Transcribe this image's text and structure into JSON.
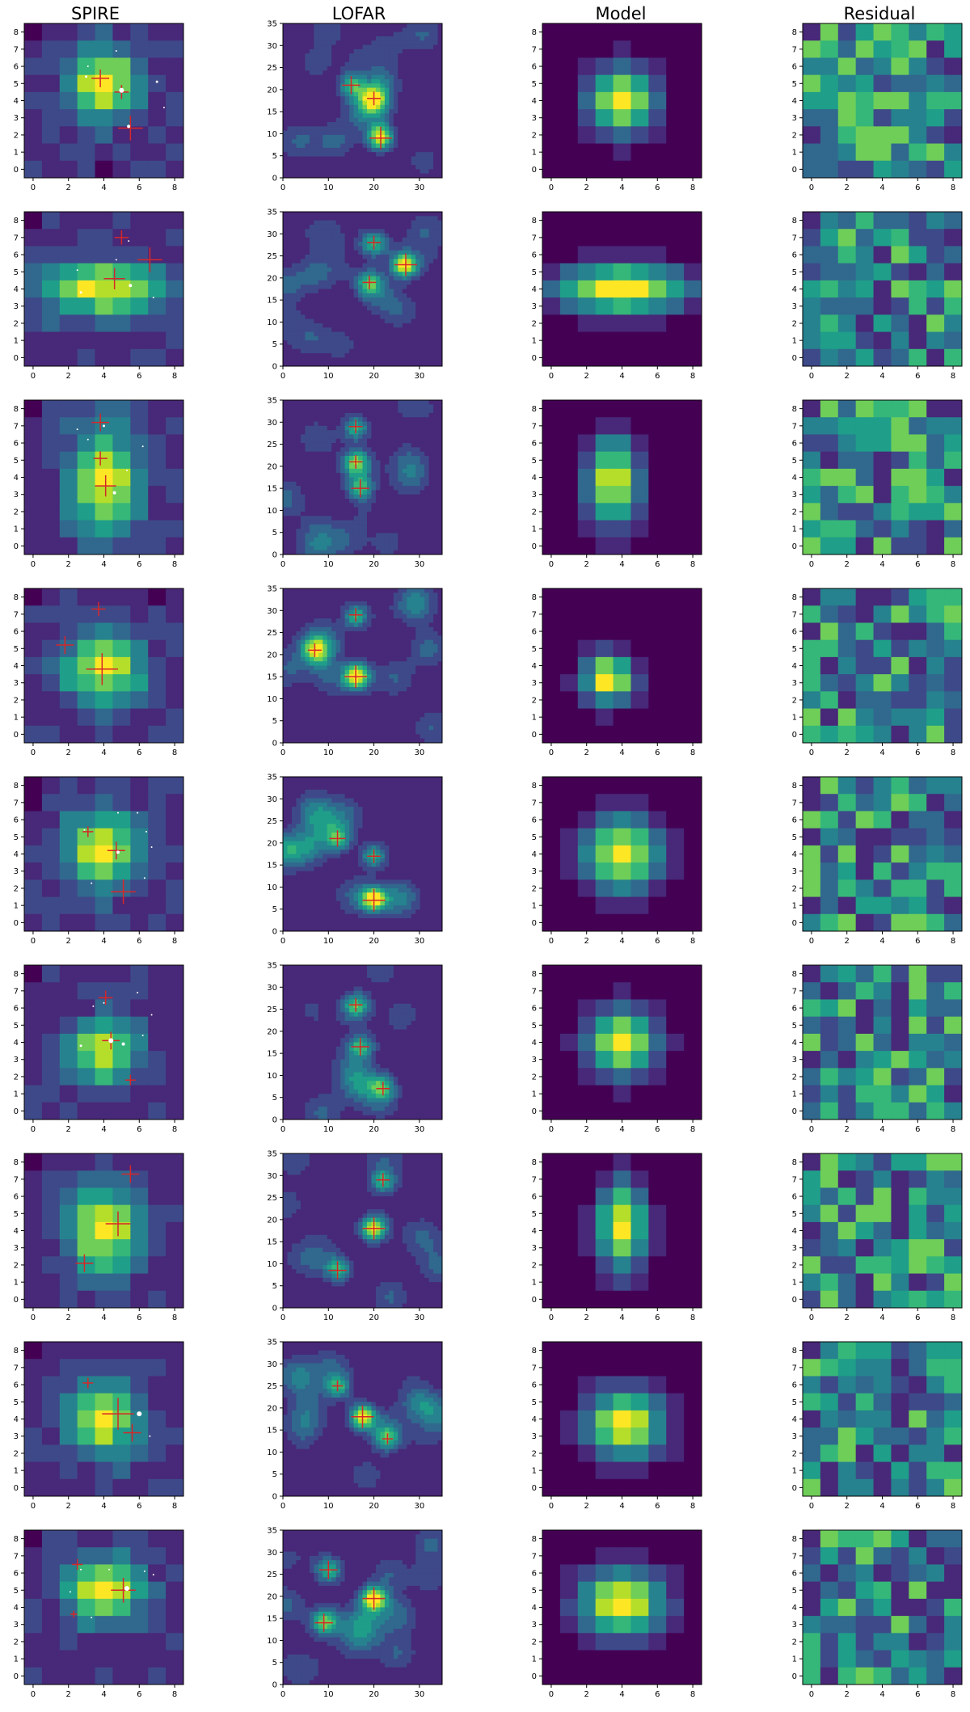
{
  "figure": {
    "columns": [
      "SPIRE",
      "LOFAR",
      "Model",
      "Residual"
    ],
    "axes": {
      "SPIRE": {
        "xticks": [
          "0",
          "2",
          "4",
          "6",
          "8"
        ],
        "yticks": [
          "0",
          "1",
          "2",
          "3",
          "4",
          "5",
          "6",
          "7",
          "8"
        ],
        "grid_cells": 9
      },
      "LOFAR": {
        "xticks": [
          "0",
          "10",
          "20",
          "30"
        ],
        "yticks": [
          "0",
          "5",
          "10",
          "15",
          "20",
          "25",
          "30",
          "35"
        ],
        "range_max": 35
      },
      "Model": {
        "xticks": [
          "0",
          "2",
          "4",
          "6",
          "8"
        ],
        "yticks": [
          "0",
          "1",
          "2",
          "3",
          "4",
          "5",
          "6",
          "7",
          "8"
        ],
        "grid_cells": 9
      },
      "Residual": {
        "xticks": [
          "0",
          "2",
          "4",
          "6",
          "8"
        ],
        "yticks": [
          "0",
          "1",
          "2",
          "3",
          "4",
          "5",
          "6",
          "7",
          "8"
        ],
        "grid_cells": 9
      }
    },
    "colormap": [
      "#440154",
      "#482878",
      "#3e4989",
      "#31688e",
      "#26828e",
      "#1f9e89",
      "#35b779",
      "#6ece58",
      "#b5de2b",
      "#fde725"
    ],
    "marker_color": "#d62728",
    "rows": [
      {
        "spire": {
          "peak": [
            4,
            5
          ],
          "sx": 1.4,
          "sy": 1.5
        },
        "lofar": {
          "peak": [
            21.5,
            9
          ]
        },
        "crosses": [
          [
            3.8,
            5.3,
            0.5
          ],
          [
            5.0,
            4.5,
            0.4
          ],
          [
            5.5,
            2.4,
            0.7
          ]
        ],
        "lofar_crosses": [
          [
            15,
            21,
            2
          ],
          [
            20,
            18,
            1.5
          ],
          [
            21.5,
            9,
            2.5
          ]
        ],
        "dots": [
          [
            5,
            4.6,
            3
          ],
          [
            5.4,
            2.5,
            2
          ],
          [
            3,
            5.4,
            1.5
          ],
          [
            7,
            5.1,
            1.5
          ],
          [
            3.1,
            6,
            1
          ],
          [
            4.7,
            6.9,
            1
          ],
          [
            7.4,
            3.6,
            1
          ]
        ],
        "model": {
          "peak": [
            4,
            4
          ],
          "sx": 1.3,
          "sy": 1.4
        }
      },
      {
        "spire": {
          "peak": [
            4,
            4
          ],
          "sx": 2.5,
          "sy": 1.1
        },
        "lofar": {
          "peak": [
            27,
            23
          ]
        },
        "crosses": [
          [
            5,
            7,
            0.4
          ],
          [
            4.6,
            4.6,
            0.6
          ],
          [
            6.6,
            5.7,
            0.7
          ]
        ],
        "lofar_crosses": [
          [
            27,
            23,
            2.5
          ],
          [
            20,
            28,
            1.5
          ],
          [
            19,
            19,
            1.5
          ]
        ],
        "dots": [
          [
            5.5,
            4.2,
            2
          ],
          [
            2.7,
            3.8,
            1.5
          ],
          [
            5.4,
            6.8,
            1
          ],
          [
            4.7,
            5.7,
            1
          ],
          [
            6.8,
            3.5,
            1
          ],
          [
            2.5,
            5.1,
            1
          ]
        ],
        "model": {
          "peak": [
            4,
            4
          ],
          "sx": 2.6,
          "sy": 1.0
        }
      },
      {
        "spire": {
          "peak": [
            4,
            3.8
          ],
          "sx": 1.4,
          "sy": 2.2
        },
        "lofar": {
          "peak": [
            17,
            15
          ]
        },
        "crosses": [
          [
            3.8,
            7.2,
            0.5
          ],
          [
            3.8,
            5.1,
            0.4
          ],
          [
            4.1,
            3.5,
            0.6
          ]
        ],
        "lofar_crosses": [
          [
            16,
            29,
            1.5
          ],
          [
            16,
            21,
            1.5
          ],
          [
            17,
            15,
            2
          ]
        ],
        "dots": [
          [
            4.6,
            3.1,
            2
          ],
          [
            4,
            7.0,
            1.5
          ],
          [
            3.1,
            6.2,
            1
          ],
          [
            5.3,
            4.4,
            1
          ],
          [
            6.2,
            5.8,
            1
          ],
          [
            2.5,
            6.8,
            1
          ]
        ],
        "model": {
          "peak": [
            3.5,
            3.8
          ],
          "sx": 1.0,
          "sy": 1.8
        }
      },
      {
        "spire": {
          "peak": [
            4,
            3.8
          ],
          "sx": 1.6,
          "sy": 1.5
        },
        "lofar": {
          "peak": [
            16,
            15
          ]
        },
        "crosses": [
          [
            3.7,
            7.3,
            0.4
          ],
          [
            1.8,
            5.2,
            0.5
          ],
          [
            3.9,
            3.8,
            0.9
          ]
        ],
        "lofar_crosses": [
          [
            16,
            29,
            1.5
          ],
          [
            7,
            21,
            1.5
          ],
          [
            16,
            15,
            2.5
          ]
        ],
        "dots": [],
        "model": {
          "peak": [
            3.2,
            3.2
          ],
          "sx": 1.0,
          "sy": 1.0,
          "cut": true
        }
      },
      {
        "spire": {
          "peak": [
            4,
            4.3
          ],
          "sx": 1.5,
          "sy": 1.7
        },
        "lofar": {
          "peak": [
            12,
            21
          ]
        },
        "crosses": [
          [
            3.1,
            5.3,
            0.3
          ],
          [
            4.7,
            4.2,
            0.5
          ],
          [
            5.1,
            1.8,
            0.7
          ]
        ],
        "lofar_crosses": [
          [
            12,
            21,
            1.8
          ],
          [
            20,
            17,
            1.5
          ],
          [
            20,
            7,
            2.5
          ]
        ],
        "dots": [
          [
            4.8,
            4.1,
            2
          ],
          [
            5.9,
            6.4,
            1
          ],
          [
            4.8,
            6.4,
            1
          ],
          [
            6.4,
            5.3,
            1
          ],
          [
            6.7,
            4.4,
            1
          ],
          [
            6.3,
            2.6,
            1
          ],
          [
            2.9,
            5.4,
            1
          ],
          [
            3.3,
            2.3,
            1
          ]
        ],
        "model": {
          "peak": [
            4,
            4
          ],
          "sx": 1.5,
          "sy": 1.5
        }
      },
      {
        "spire": {
          "peak": [
            4,
            3.5
          ],
          "sx": 1.4,
          "sy": 1.3
        },
        "lofar": {
          "peak": [
            17,
            16.5
          ]
        },
        "crosses": [
          [
            4.1,
            6.6,
            0.4
          ],
          [
            4.4,
            4.1,
            0.5
          ],
          [
            5.5,
            1.8,
            0.3
          ]
        ],
        "lofar_crosses": [
          [
            16,
            26,
            1.5
          ],
          [
            17,
            16.5,
            2
          ],
          [
            22,
            7,
            1.5
          ]
        ],
        "dots": [
          [
            4.4,
            4.1,
            3
          ],
          [
            5.1,
            3.9,
            2
          ],
          [
            2.7,
            3.8,
            1.5
          ],
          [
            4,
            6.3,
            1
          ],
          [
            3.4,
            6.1,
            1
          ],
          [
            5.9,
            6.9,
            1
          ],
          [
            6.7,
            5.6,
            1
          ],
          [
            6.2,
            4.4,
            1
          ]
        ],
        "model": {
          "peak": [
            4,
            4
          ],
          "sx": 1.4,
          "sy": 1.4
        }
      },
      {
        "spire": {
          "peak": [
            4,
            4
          ],
          "sx": 1.4,
          "sy": 1.8
        },
        "lofar": {
          "peak": [
            20,
            18
          ]
        },
        "crosses": [
          [
            5.5,
            7.3,
            0.5
          ],
          [
            4.8,
            4.4,
            0.7
          ],
          [
            2.9,
            2.1,
            0.5
          ]
        ],
        "lofar_crosses": [
          [
            22,
            29,
            1.5
          ],
          [
            20,
            18,
            2.5
          ],
          [
            12,
            8.5,
            2
          ]
        ],
        "dots": [],
        "model": {
          "peak": [
            4,
            4.2
          ],
          "sx": 1.0,
          "sy": 1.8
        }
      },
      {
        "spire": {
          "peak": [
            4,
            4
          ],
          "sx": 1.4,
          "sy": 1.5
        },
        "lofar": {
          "peak": [
            17.5,
            18
          ]
        },
        "crosses": [
          [
            3.1,
            6.1,
            0.3
          ],
          [
            4.8,
            4.3,
            0.9
          ],
          [
            5.6,
            3.2,
            0.5
          ]
        ],
        "lofar_crosses": [
          [
            12,
            25,
            1.2
          ],
          [
            17.5,
            18,
            2.5
          ],
          [
            23,
            13,
            1.2
          ]
        ],
        "dots": [
          [
            6,
            4.3,
            3
          ],
          [
            6.6,
            3.0,
            1
          ]
        ],
        "model": {
          "peak": [
            4.2,
            3.7
          ],
          "sx": 1.5,
          "sy": 1.4
        }
      },
      {
        "spire": {
          "peak": [
            4,
            5
          ],
          "sx": 1.6,
          "sy": 1.3
        },
        "lofar": {
          "peak": [
            20,
            19.5
          ]
        },
        "crosses": [
          [
            2.5,
            6.5,
            0.3
          ],
          [
            5.1,
            5.0,
            0.7
          ],
          [
            2.3,
            3.6,
            0.2
          ]
        ],
        "lofar_crosses": [
          [
            10,
            26,
            2
          ],
          [
            20,
            19.5,
            2.5
          ],
          [
            9,
            14,
            2
          ]
        ],
        "dots": [
          [
            5.3,
            5.1,
            3
          ],
          [
            2.7,
            6.2,
            1
          ],
          [
            4.3,
            6.2,
            1
          ],
          [
            6.3,
            6.1,
            1
          ],
          [
            6.8,
            5.9,
            1
          ],
          [
            2.1,
            4.9,
            1
          ],
          [
            3.3,
            3.4,
            1
          ]
        ],
        "model": {
          "peak": [
            4,
            4.2
          ],
          "sx": 1.7,
          "sy": 1.4
        }
      }
    ]
  }
}
